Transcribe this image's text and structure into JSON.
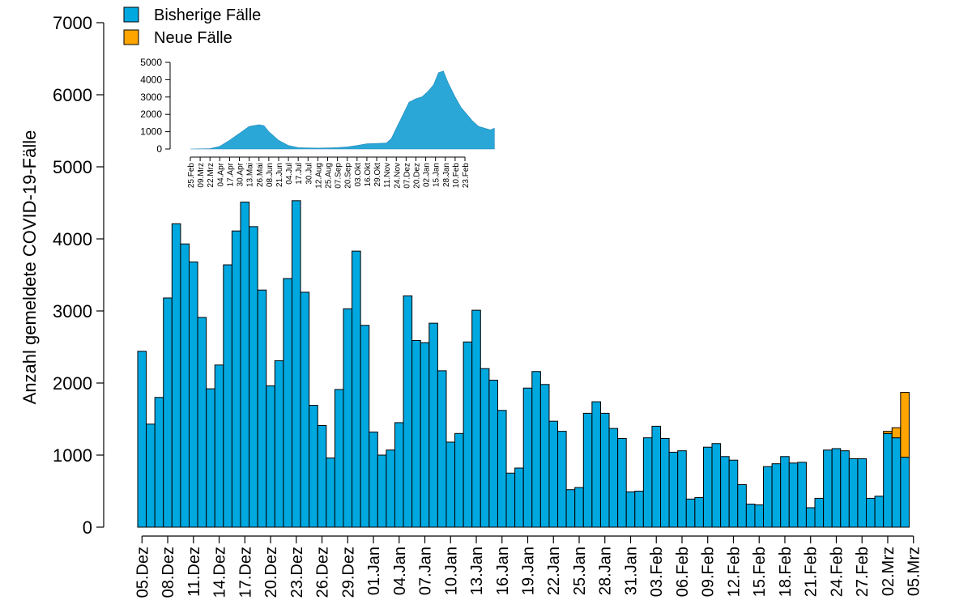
{
  "chart_data": {
    "type": "bar",
    "ylabel": "Anzahl gemeldete COVID-19-Fälle",
    "ylim": [
      0,
      7000
    ],
    "yticks": [
      0,
      1000,
      2000,
      3000,
      4000,
      5000,
      6000,
      7000
    ],
    "xticks": [
      "05.Dez",
      "08.Dez",
      "11.Dez",
      "14.Dez",
      "17.Dez",
      "20.Dez",
      "23.Dez",
      "26.Dez",
      "29.Dez",
      "01.Jan",
      "04.Jan",
      "07.Jan",
      "10.Jan",
      "13.Jan",
      "16.Jan",
      "19.Jan",
      "22.Jan",
      "25.Jan",
      "28.Jan",
      "31.Jan",
      "03.Feb",
      "06.Feb",
      "09.Feb",
      "12.Feb",
      "15.Feb",
      "18.Feb",
      "21.Feb",
      "24.Feb",
      "27.Feb",
      "02.Mrz",
      "05.Mrz"
    ],
    "legend": [
      {
        "name": "Bisherige Fälle",
        "color": "#00A8E0"
      },
      {
        "name": "Neue Fälle",
        "color": "#FFA500"
      }
    ],
    "legend_position": "top-left",
    "series": [
      {
        "name": "Bisherige Fälle",
        "color": "#00A8E0",
        "values": [
          2440,
          1430,
          1800,
          3180,
          4210,
          3930,
          3680,
          2910,
          1920,
          2250,
          3640,
          4110,
          4510,
          4170,
          3290,
          1960,
          2310,
          3450,
          4530,
          3260,
          1690,
          1410,
          960,
          1910,
          3030,
          3830,
          2800,
          1320,
          1000,
          1070,
          1450,
          3210,
          2590,
          2560,
          2830,
          2170,
          1180,
          1300,
          2570,
          3010,
          2200,
          2040,
          1620,
          750,
          820,
          1930,
          2160,
          1980,
          1470,
          1330,
          520,
          550,
          1580,
          1740,
          1580,
          1370,
          1230,
          490,
          500,
          1240,
          1400,
          1230,
          1040,
          1060,
          390,
          410,
          1110,
          1160,
          980,
          930,
          590,
          320,
          310,
          840,
          880,
          980,
          890,
          900,
          270,
          400,
          1070,
          1090,
          1060,
          950,
          950,
          400,
          430,
          1300,
          1240,
          970,
          0
        ]
      },
      {
        "name": "Neue Fälle",
        "color": "#FFA500",
        "values": [
          0,
          0,
          0,
          0,
          0,
          0,
          0,
          0,
          0,
          0,
          0,
          0,
          0,
          0,
          0,
          0,
          0,
          0,
          0,
          0,
          0,
          0,
          0,
          0,
          0,
          0,
          0,
          0,
          0,
          0,
          0,
          0,
          0,
          0,
          0,
          0,
          0,
          0,
          0,
          0,
          0,
          0,
          0,
          0,
          0,
          0,
          0,
          0,
          0,
          0,
          0,
          0,
          0,
          0,
          0,
          0,
          0,
          0,
          0,
          0,
          0,
          0,
          0,
          0,
          0,
          0,
          0,
          0,
          0,
          0,
          0,
          0,
          0,
          0,
          0,
          0,
          0,
          0,
          0,
          0,
          0,
          0,
          0,
          0,
          0,
          0,
          0,
          30,
          140,
          900
        ]
      }
    ]
  },
  "inset": {
    "ylim": [
      0,
      5000
    ],
    "yticks": [
      0,
      1000,
      2000,
      3000,
      4000,
      5000
    ],
    "xticks": [
      "25.Feb",
      "09.Mrz",
      "22.Mrz",
      "04.Apr",
      "17.Apr",
      "30.Apr",
      "13.Mai",
      "26.Mai",
      "08.Jun",
      "21.Jun",
      "04.Jul",
      "17.Jul",
      "30.Jul",
      "12.Aug",
      "25.Aug",
      "07.Sep",
      "20.Sep",
      "03.Okt",
      "16.Okt",
      "29.Okt",
      "11.Nov",
      "24.Nov",
      "07.Dez",
      "20.Dez",
      "02.Jan",
      "15.Jan",
      "28.Jan",
      "10.Feb",
      "23.Feb"
    ],
    "envelope": [
      [
        0,
        0
      ],
      [
        2,
        20
      ],
      [
        3,
        150
      ],
      [
        4,
        500
      ],
      [
        5,
        900
      ],
      [
        6,
        1300
      ],
      [
        7,
        1400
      ],
      [
        7.5,
        1350
      ],
      [
        8,
        1000
      ],
      [
        9,
        500
      ],
      [
        10,
        200
      ],
      [
        11,
        80
      ],
      [
        12,
        60
      ],
      [
        13,
        50
      ],
      [
        14,
        60
      ],
      [
        15,
        80
      ],
      [
        16,
        120
      ],
      [
        17,
        200
      ],
      [
        18,
        300
      ],
      [
        19,
        320
      ],
      [
        20,
        350
      ],
      [
        20.5,
        600
      ],
      [
        21,
        1200
      ],
      [
        21.7,
        2000
      ],
      [
        22.3,
        2700
      ],
      [
        23,
        2900
      ],
      [
        23.6,
        3000
      ],
      [
        24.2,
        3300
      ],
      [
        24.8,
        3700
      ],
      [
        25.3,
        4400
      ],
      [
        25.8,
        4500
      ],
      [
        26.3,
        3800
      ],
      [
        27,
        3000
      ],
      [
        27.6,
        2400
      ],
      [
        28.2,
        2000
      ],
      [
        28.8,
        1600
      ],
      [
        29.4,
        1300
      ],
      [
        30,
        1200
      ],
      [
        30.6,
        1100
      ],
      [
        31,
        1200
      ]
    ]
  }
}
